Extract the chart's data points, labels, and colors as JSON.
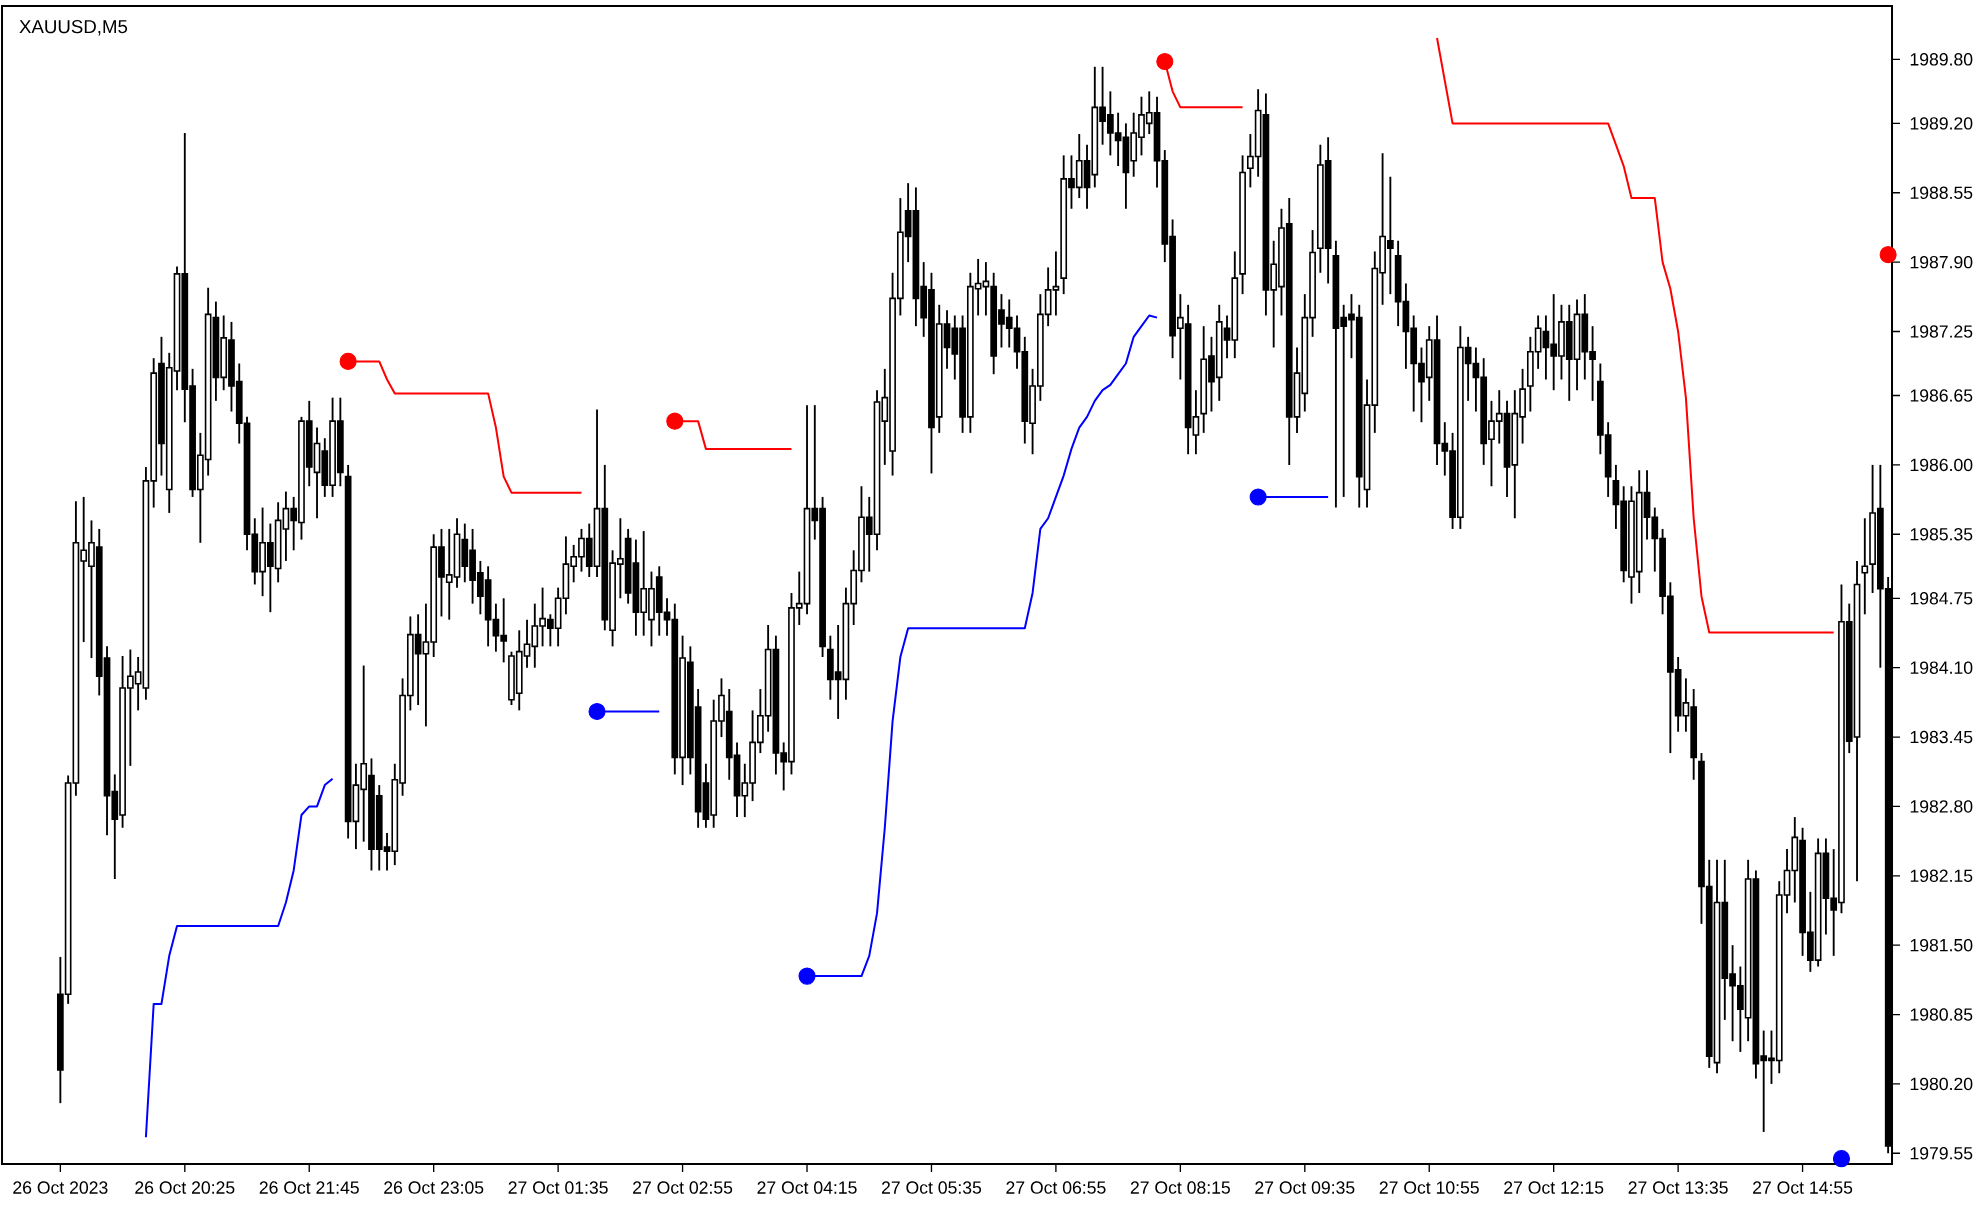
{
  "chart_data": {
    "type": "candlestick",
    "title": "XAUUSD,M5",
    "categories": [
      "26 Oct 2023",
      null,
      null,
      null,
      null,
      null,
      null,
      null,
      null,
      null,
      null,
      null,
      null,
      null,
      null,
      null,
      "26 Oct 20:25",
      null,
      null,
      null,
      null,
      null,
      null,
      null,
      null,
      null,
      null,
      null,
      null,
      null,
      null,
      null,
      "26 Oct 21:45",
      null,
      null,
      null,
      null,
      null,
      null,
      null,
      null,
      null,
      null,
      null,
      null,
      null,
      null,
      null,
      "26 Oct 23:05",
      null,
      null,
      null,
      null,
      null,
      null,
      null,
      null,
      null,
      null,
      null,
      null,
      null,
      null,
      null,
      "27 Oct 01:35",
      null,
      null,
      null,
      null,
      null,
      null,
      null,
      null,
      null,
      null,
      null,
      null,
      null,
      null,
      null,
      "27 Oct 02:55",
      null,
      null,
      null,
      null,
      null,
      null,
      null,
      null,
      null,
      null,
      null,
      null,
      null,
      null,
      null,
      "27 Oct 04:15",
      null,
      null,
      null,
      null,
      null,
      null,
      null,
      null,
      null,
      null,
      null,
      null,
      null,
      null,
      null,
      "27 Oct 05:35",
      null,
      null,
      null,
      null,
      null,
      null,
      null,
      null,
      null,
      null,
      null,
      null,
      null,
      null,
      null,
      "27 Oct 06:55",
      null,
      null,
      null,
      null,
      null,
      null,
      null,
      null,
      null,
      null,
      null,
      null,
      null,
      null,
      null,
      "27 Oct 08:15",
      null,
      null,
      null,
      null,
      null,
      null,
      null,
      null,
      null,
      null,
      null,
      null,
      null,
      null,
      null,
      "27 Oct 09:35",
      null,
      null,
      null,
      null,
      null,
      null,
      null,
      null,
      null,
      null,
      null,
      null,
      null,
      null,
      null,
      "27 Oct 10:55",
      null,
      null,
      null,
      null,
      null,
      null,
      null,
      null,
      null,
      null,
      null,
      null,
      null,
      null,
      null,
      "27 Oct 12:15",
      null,
      null,
      null,
      null,
      null,
      null,
      null,
      null,
      null,
      null,
      null,
      null,
      null,
      null,
      null,
      "27 Oct 13:35",
      null,
      null,
      null,
      null,
      null,
      null,
      null,
      null,
      null,
      null,
      null,
      null,
      null,
      null,
      null,
      "27 Oct 14:55",
      null,
      null,
      null,
      null,
      null,
      null,
      null,
      null,
      null,
      null,
      null
    ],
    "ohlc": [
      [
        1981.04,
        1981.39,
        1980.02,
        1980.33
      ],
      [
        1981.04,
        1983.09,
        1980.95,
        1983.02
      ],
      [
        1983.02,
        1985.66,
        1982.9,
        1985.27
      ],
      [
        1985.1,
        1985.7,
        1984.34,
        1985.2
      ],
      [
        1985.05,
        1985.48,
        1984.19,
        1985.27
      ],
      [
        1985.23,
        1985.4,
        1983.84,
        1984.02
      ],
      [
        1984.19,
        1984.3,
        1982.53,
        1982.9
      ],
      [
        1982.94,
        1983.1,
        1982.12,
        1982.68
      ],
      [
        1982.72,
        1984.21,
        1982.6,
        1983.91
      ],
      [
        1983.91,
        1984.27,
        1983.18,
        1984.02
      ],
      [
        1983.95,
        1984.2,
        1983.7,
        1984.06
      ],
      [
        1983.91,
        1985.98,
        1983.8,
        1985.85
      ],
      [
        1985.85,
        1987.0,
        1985.6,
        1986.86
      ],
      [
        1986.95,
        1987.2,
        1985.9,
        1986.2
      ],
      [
        1985.77,
        1987.05,
        1985.55,
        1986.91
      ],
      [
        1986.88,
        1987.86,
        1986.7,
        1987.79
      ],
      [
        1987.79,
        1989.11,
        1986.4,
        1986.71
      ],
      [
        1986.74,
        1986.9,
        1985.7,
        1985.77
      ],
      [
        1985.77,
        1986.3,
        1985.27,
        1986.09
      ],
      [
        1986.05,
        1987.66,
        1985.9,
        1987.41
      ],
      [
        1987.38,
        1987.53,
        1986.6,
        1986.82
      ],
      [
        1986.82,
        1987.4,
        1986.7,
        1987.19
      ],
      [
        1987.17,
        1987.34,
        1986.5,
        1986.74
      ],
      [
        1986.78,
        1986.95,
        1986.2,
        1986.39
      ],
      [
        1986.39,
        1986.45,
        1985.2,
        1985.35
      ],
      [
        1985.35,
        1985.5,
        1984.88,
        1985.0
      ],
      [
        1985.0,
        1985.6,
        1984.77,
        1985.27
      ],
      [
        1985.27,
        1985.45,
        1984.62,
        1985.05
      ],
      [
        1985.03,
        1985.65,
        1984.9,
        1985.48
      ],
      [
        1985.4,
        1985.75,
        1985.1,
        1985.59
      ],
      [
        1985.59,
        1985.7,
        1985.2,
        1985.48
      ],
      [
        1985.46,
        1986.45,
        1985.3,
        1986.41
      ],
      [
        1986.41,
        1986.6,
        1985.8,
        1985.98
      ],
      [
        1985.93,
        1986.35,
        1985.5,
        1986.2
      ],
      [
        1986.13,
        1986.25,
        1985.7,
        1985.81
      ],
      [
        1985.81,
        1986.63,
        1985.7,
        1986.41
      ],
      [
        1986.41,
        1986.63,
        1985.8,
        1985.93
      ],
      [
        1985.89,
        1986.0,
        1982.5,
        1982.66
      ],
      [
        1982.66,
        1983.2,
        1982.4,
        1983.0
      ],
      [
        1982.96,
        1984.12,
        1982.47,
        1983.2
      ],
      [
        1983.09,
        1983.25,
        1982.2,
        1982.4
      ],
      [
        1982.9,
        1983.0,
        1982.2,
        1982.4
      ],
      [
        1982.42,
        1982.55,
        1982.2,
        1982.38
      ],
      [
        1982.38,
        1983.2,
        1982.25,
        1983.05
      ],
      [
        1983.02,
        1984.0,
        1982.9,
        1983.84
      ],
      [
        1983.84,
        1984.58,
        1983.7,
        1984.41
      ],
      [
        1984.41,
        1984.6,
        1983.75,
        1984.23
      ],
      [
        1984.23,
        1984.7,
        1983.55,
        1984.34
      ],
      [
        1984.34,
        1985.35,
        1984.2,
        1985.23
      ],
      [
        1985.23,
        1985.4,
        1984.58,
        1984.95
      ],
      [
        1984.9,
        1985.4,
        1984.55,
        1984.97
      ],
      [
        1984.95,
        1985.5,
        1984.85,
        1985.35
      ],
      [
        1985.3,
        1985.45,
        1984.9,
        1985.05
      ],
      [
        1985.2,
        1985.4,
        1984.7,
        1984.92
      ],
      [
        1984.99,
        1985.1,
        1984.6,
        1984.77
      ],
      [
        1984.92,
        1985.05,
        1984.3,
        1984.55
      ],
      [
        1984.55,
        1984.7,
        1984.25,
        1984.4
      ],
      [
        1984.4,
        1984.75,
        1984.15,
        1984.35
      ],
      [
        1983.8,
        1984.25,
        1983.75,
        1984.21
      ],
      [
        1983.86,
        1984.45,
        1983.7,
        1984.25
      ],
      [
        1984.21,
        1984.55,
        1984.1,
        1984.32
      ],
      [
        1984.3,
        1984.7,
        1984.1,
        1984.49
      ],
      [
        1984.49,
        1984.85,
        1984.3,
        1984.56
      ],
      [
        1984.55,
        1984.6,
        1984.3,
        1984.47
      ],
      [
        1984.47,
        1984.85,
        1984.3,
        1984.75
      ],
      [
        1984.75,
        1985.33,
        1984.6,
        1985.07
      ],
      [
        1985.05,
        1985.25,
        1984.9,
        1985.14
      ],
      [
        1985.14,
        1985.4,
        1985.0,
        1985.31
      ],
      [
        1985.31,
        1985.45,
        1984.95,
        1985.05
      ],
      [
        1985.05,
        1986.52,
        1984.95,
        1985.59
      ],
      [
        1985.59,
        1986.0,
        1984.45,
        1984.55
      ],
      [
        1984.45,
        1985.2,
        1984.3,
        1985.08
      ],
      [
        1985.07,
        1985.5,
        1984.75,
        1985.12
      ],
      [
        1985.31,
        1985.4,
        1984.7,
        1984.8
      ],
      [
        1985.08,
        1985.3,
        1984.4,
        1984.62
      ],
      [
        1984.62,
        1985.38,
        1984.4,
        1984.84
      ],
      [
        1984.55,
        1985.0,
        1984.3,
        1984.84
      ],
      [
        1984.95,
        1985.05,
        1984.4,
        1984.62
      ],
      [
        1984.62,
        1984.75,
        1984.4,
        1984.55
      ],
      [
        1984.55,
        1984.7,
        1983.1,
        1983.26
      ],
      [
        1983.26,
        1984.4,
        1983.0,
        1984.19
      ],
      [
        1984.15,
        1984.3,
        1983.1,
        1983.26
      ],
      [
        1983.73,
        1983.9,
        1982.6,
        1982.75
      ],
      [
        1983.02,
        1983.2,
        1982.6,
        1982.68
      ],
      [
        1982.72,
        1983.8,
        1982.6,
        1983.6
      ],
      [
        1983.6,
        1984.0,
        1983.45,
        1983.84
      ],
      [
        1983.69,
        1983.9,
        1983.05,
        1983.26
      ],
      [
        1983.28,
        1983.4,
        1982.7,
        1982.9
      ],
      [
        1982.9,
        1983.2,
        1982.7,
        1983.02
      ],
      [
        1983.02,
        1983.7,
        1982.85,
        1983.4
      ],
      [
        1983.4,
        1983.9,
        1983.3,
        1983.65
      ],
      [
        1983.65,
        1984.5,
        1983.5,
        1984.27
      ],
      [
        1984.27,
        1984.4,
        1983.1,
        1983.3
      ],
      [
        1983.3,
        1983.4,
        1982.95,
        1983.22
      ],
      [
        1983.22,
        1984.8,
        1983.1,
        1984.66
      ],
      [
        1984.66,
        1985.0,
        1984.5,
        1984.7
      ],
      [
        1984.7,
        1986.56,
        1984.6,
        1985.59
      ],
      [
        1985.59,
        1986.56,
        1985.3,
        1985.48
      ],
      [
        1985.59,
        1985.7,
        1984.2,
        1984.3
      ],
      [
        1984.27,
        1984.4,
        1983.8,
        1983.99
      ],
      [
        1984.06,
        1984.5,
        1983.62,
        1983.99
      ],
      [
        1983.99,
        1984.85,
        1983.8,
        1984.7
      ],
      [
        1984.7,
        1985.2,
        1984.5,
        1985.01
      ],
      [
        1985.01,
        1985.8,
        1984.9,
        1985.51
      ],
      [
        1985.51,
        1985.7,
        1985.0,
        1985.35
      ],
      [
        1985.35,
        1986.7,
        1985.2,
        1986.59
      ],
      [
        1986.41,
        1986.9,
        1986.0,
        1986.63
      ],
      [
        1986.13,
        1987.8,
        1985.9,
        1987.56
      ],
      [
        1987.56,
        1988.5,
        1987.4,
        1988.18
      ],
      [
        1988.38,
        1988.64,
        1987.9,
        1988.14
      ],
      [
        1988.38,
        1988.6,
        1987.3,
        1987.56
      ],
      [
        1987.67,
        1987.9,
        1987.2,
        1987.38
      ],
      [
        1987.64,
        1987.8,
        1985.92,
        1986.35
      ],
      [
        1986.45,
        1987.5,
        1986.3,
        1987.32
      ],
      [
        1987.32,
        1987.45,
        1986.9,
        1987.1
      ],
      [
        1987.28,
        1987.4,
        1986.8,
        1987.04
      ],
      [
        1987.28,
        1987.4,
        1986.3,
        1986.45
      ],
      [
        1986.45,
        1987.8,
        1986.3,
        1987.67
      ],
      [
        1987.65,
        1987.93,
        1987.4,
        1987.7
      ],
      [
        1987.67,
        1987.9,
        1987.4,
        1987.72
      ],
      [
        1987.67,
        1987.8,
        1986.85,
        1987.02
      ],
      [
        1987.45,
        1987.6,
        1987.1,
        1987.32
      ],
      [
        1987.38,
        1987.55,
        1987.1,
        1987.28
      ],
      [
        1987.28,
        1987.4,
        1986.9,
        1987.06
      ],
      [
        1987.06,
        1987.2,
        1986.2,
        1986.41
      ],
      [
        1986.39,
        1986.9,
        1986.1,
        1986.74
      ],
      [
        1986.74,
        1987.6,
        1986.6,
        1987.41
      ],
      [
        1987.41,
        1987.85,
        1987.3,
        1987.64
      ],
      [
        1987.64,
        1988.0,
        1987.4,
        1987.67
      ],
      [
        1987.75,
        1988.9,
        1987.6,
        1988.68
      ],
      [
        1988.68,
        1988.9,
        1988.4,
        1988.6
      ],
      [
        1988.6,
        1989.1,
        1988.5,
        1988.85
      ],
      [
        1988.85,
        1989.0,
        1988.4,
        1988.6
      ],
      [
        1988.72,
        1989.73,
        1988.6,
        1989.35
      ],
      [
        1989.35,
        1989.73,
        1989.0,
        1989.22
      ],
      [
        1989.28,
        1989.5,
        1988.9,
        1989.11
      ],
      [
        1989.11,
        1989.3,
        1988.8,
        1989.04
      ],
      [
        1989.07,
        1989.2,
        1988.4,
        1988.74
      ],
      [
        1988.85,
        1989.3,
        1988.7,
        1989.11
      ],
      [
        1989.07,
        1989.45,
        1988.9,
        1989.28
      ],
      [
        1989.2,
        1989.5,
        1989.1,
        1989.3
      ],
      [
        1989.3,
        1989.45,
        1988.6,
        1988.85
      ],
      [
        1988.85,
        1988.95,
        1987.9,
        1988.07
      ],
      [
        1988.14,
        1988.3,
        1987.0,
        1987.21
      ],
      [
        1987.28,
        1987.6,
        1986.8,
        1987.38
      ],
      [
        1987.32,
        1987.5,
        1986.1,
        1986.35
      ],
      [
        1986.28,
        1986.7,
        1986.1,
        1986.45
      ],
      [
        1986.48,
        1987.3,
        1986.3,
        1986.99
      ],
      [
        1987.02,
        1987.2,
        1986.5,
        1986.78
      ],
      [
        1986.82,
        1987.5,
        1986.6,
        1987.34
      ],
      [
        1987.28,
        1987.4,
        1987.0,
        1987.17
      ],
      [
        1987.17,
        1988.0,
        1987.0,
        1987.75
      ],
      [
        1987.79,
        1988.9,
        1987.6,
        1988.74
      ],
      [
        1988.78,
        1989.1,
        1988.6,
        1988.89
      ],
      [
        1988.89,
        1989.52,
        1988.7,
        1989.32
      ],
      [
        1989.28,
        1989.48,
        1987.4,
        1987.64
      ],
      [
        1987.64,
        1988.1,
        1987.1,
        1987.88
      ],
      [
        1987.67,
        1988.4,
        1987.4,
        1988.22
      ],
      [
        1988.26,
        1988.5,
        1986.0,
        1986.45
      ],
      [
        1986.45,
        1987.1,
        1986.3,
        1986.86
      ],
      [
        1986.67,
        1987.6,
        1986.5,
        1987.38
      ],
      [
        1987.38,
        1988.2,
        1987.2,
        1987.99
      ],
      [
        1988.03,
        1989.0,
        1987.8,
        1988.81
      ],
      [
        1988.85,
        1989.07,
        1987.7,
        1988.03
      ],
      [
        1987.96,
        1988.1,
        1985.6,
        1987.28
      ],
      [
        1987.38,
        1987.5,
        1985.7,
        1987.3
      ],
      [
        1987.41,
        1987.6,
        1987.0,
        1987.36
      ],
      [
        1987.38,
        1987.5,
        1985.6,
        1985.89
      ],
      [
        1985.77,
        1986.8,
        1985.6,
        1986.56
      ],
      [
        1986.56,
        1988.0,
        1986.3,
        1987.84
      ],
      [
        1987.8,
        1988.92,
        1987.5,
        1988.14
      ],
      [
        1988.1,
        1988.7,
        1987.6,
        1988.03
      ],
      [
        1987.96,
        1988.1,
        1987.3,
        1987.53
      ],
      [
        1987.53,
        1987.7,
        1986.9,
        1987.25
      ],
      [
        1987.28,
        1987.4,
        1986.5,
        1986.95
      ],
      [
        1986.95,
        1987.1,
        1986.4,
        1986.78
      ],
      [
        1986.82,
        1987.3,
        1986.6,
        1987.17
      ],
      [
        1987.17,
        1987.4,
        1986.0,
        1986.2
      ],
      [
        1986.2,
        1986.4,
        1985.9,
        1986.13
      ],
      [
        1986.13,
        1986.3,
        1985.4,
        1985.51
      ],
      [
        1985.51,
        1987.3,
        1985.4,
        1987.1
      ],
      [
        1987.1,
        1987.2,
        1986.6,
        1986.95
      ],
      [
        1986.95,
        1987.1,
        1986.5,
        1986.82
      ],
      [
        1986.82,
        1987.0,
        1986.0,
        1986.2
      ],
      [
        1986.24,
        1986.6,
        1985.8,
        1986.41
      ],
      [
        1986.41,
        1986.7,
        1986.2,
        1986.48
      ],
      [
        1986.48,
        1986.6,
        1985.7,
        1985.98
      ],
      [
        1986.0,
        1986.7,
        1985.5,
        1986.48
      ],
      [
        1986.45,
        1986.9,
        1986.2,
        1986.71
      ],
      [
        1986.74,
        1987.2,
        1986.5,
        1987.06
      ],
      [
        1987.06,
        1987.4,
        1986.9,
        1987.28
      ],
      [
        1987.25,
        1987.4,
        1986.8,
        1987.1
      ],
      [
        1987.13,
        1987.6,
        1986.7,
        1987.02
      ],
      [
        1987.02,
        1987.5,
        1986.8,
        1987.34
      ],
      [
        1987.34,
        1987.5,
        1986.6,
        1986.99
      ],
      [
        1986.99,
        1987.55,
        1986.7,
        1987.41
      ],
      [
        1987.41,
        1987.6,
        1986.8,
        1987.06
      ],
      [
        1987.06,
        1987.3,
        1986.6,
        1986.99
      ],
      [
        1986.78,
        1986.95,
        1986.1,
        1986.28
      ],
      [
        1986.28,
        1986.4,
        1985.7,
        1985.89
      ],
      [
        1985.85,
        1986.0,
        1985.4,
        1985.63
      ],
      [
        1985.66,
        1985.8,
        1984.9,
        1985.01
      ],
      [
        1984.95,
        1985.8,
        1984.7,
        1985.66
      ],
      [
        1985.0,
        1985.95,
        1984.8,
        1985.74
      ],
      [
        1985.74,
        1985.95,
        1985.3,
        1985.51
      ],
      [
        1985.51,
        1985.6,
        1985.0,
        1985.31
      ],
      [
        1985.31,
        1985.4,
        1984.6,
        1984.77
      ],
      [
        1984.77,
        1984.9,
        1983.3,
        1984.06
      ],
      [
        1984.08,
        1984.2,
        1983.5,
        1983.65
      ],
      [
        1983.65,
        1984.0,
        1983.5,
        1983.77
      ],
      [
        1983.73,
        1983.9,
        1983.05,
        1983.26
      ],
      [
        1983.22,
        1983.3,
        1981.7,
        1982.05
      ],
      [
        1982.05,
        1982.3,
        1980.35,
        1980.46
      ],
      [
        1980.4,
        1982.3,
        1980.3,
        1981.9
      ],
      [
        1981.9,
        1982.3,
        1980.8,
        1981.19
      ],
      [
        1981.23,
        1981.5,
        1980.6,
        1981.12
      ],
      [
        1981.12,
        1981.3,
        1980.5,
        1980.9
      ],
      [
        1980.82,
        1982.3,
        1980.6,
        1982.12
      ],
      [
        1982.12,
        1982.2,
        1980.25,
        1980.39
      ],
      [
        1980.46,
        1980.7,
        1979.75,
        1980.42
      ],
      [
        1980.44,
        1980.7,
        1980.2,
        1980.42
      ],
      [
        1980.42,
        1982.1,
        1980.3,
        1981.97
      ],
      [
        1981.97,
        1982.4,
        1981.8,
        1982.2
      ],
      [
        1982.2,
        1982.7,
        1981.9,
        1982.51
      ],
      [
        1982.48,
        1982.6,
        1981.4,
        1981.62
      ],
      [
        1981.62,
        1982.0,
        1981.25,
        1981.36
      ],
      [
        1981.36,
        1982.5,
        1981.3,
        1982.36
      ],
      [
        1982.36,
        1982.5,
        1981.6,
        1981.94
      ],
      [
        1981.94,
        1982.4,
        1981.4,
        1981.83
      ],
      [
        1981.9,
        1984.88,
        1981.8,
        1984.53
      ],
      [
        1984.53,
        1984.7,
        1983.3,
        1983.41
      ],
      [
        1983.45,
        1985.1,
        1982.1,
        1984.88
      ],
      [
        1984.99,
        1985.5,
        1984.6,
        1985.05
      ],
      [
        1985.07,
        1986.0,
        1984.8,
        1985.55
      ],
      [
        1985.59,
        1986.0,
        1984.1,
        1984.84
      ],
      [
        1984.84,
        1984.95,
        1979.55,
        1979.62
      ]
    ],
    "series": [
      {
        "type": "line",
        "color": "#ff0000",
        "values": [
          null,
          null,
          null,
          null,
          null,
          null,
          null,
          null,
          null,
          null,
          null,
          null,
          null,
          null,
          null,
          null,
          null,
          null,
          null,
          null,
          null,
          null,
          null,
          null,
          null,
          null,
          null,
          null,
          null,
          null,
          null,
          null,
          null,
          null,
          null,
          null,
          null,
          1986.97,
          1986.97,
          1986.97,
          1986.97,
          1986.97,
          1986.8,
          1986.67,
          1986.67,
          1986.67,
          1986.67,
          1986.67,
          1986.67,
          1986.67,
          1986.67,
          1986.67,
          1986.67,
          1986.67,
          1986.67,
          1986.67,
          1986.35,
          1985.89,
          1985.74,
          1985.74,
          1985.74,
          1985.74,
          1985.74,
          1985.74,
          1985.74,
          1985.74,
          1985.74,
          1985.74,
          null,
          null,
          null,
          null,
          null,
          null,
          null,
          null,
          null,
          null,
          null,
          1986.41,
          1986.41,
          1986.41,
          1986.41,
          1986.15,
          1986.15,
          1986.15,
          1986.15,
          1986.15,
          1986.15,
          1986.15,
          1986.15,
          1986.15,
          1986.15,
          1986.15,
          1986.15,
          null,
          null,
          null,
          null,
          null,
          null,
          null,
          null,
          null,
          null,
          null,
          null,
          null,
          null,
          null,
          null,
          null,
          null,
          null,
          null,
          null,
          null,
          null,
          null,
          null,
          null,
          null,
          null,
          null,
          null,
          null,
          null,
          null,
          null,
          null,
          null,
          null,
          null,
          null,
          null,
          null,
          null,
          null,
          null,
          null,
          null,
          null,
          1989.78,
          1989.5,
          1989.35,
          1989.35,
          1989.35,
          1989.35,
          1989.35,
          1989.35,
          1989.35,
          1989.35,
          1989.35,
          null,
          null,
          null,
          null,
          null,
          null,
          null,
          null,
          null,
          null,
          null,
          null,
          null,
          null,
          null,
          null,
          null,
          null,
          null,
          null,
          null,
          null,
          null,
          null,
          1990.0,
          1989.6,
          1989.2,
          1989.2,
          1989.2,
          1989.2,
          1989.2,
          1989.2,
          1989.2,
          1989.2,
          1989.2,
          1989.2,
          1989.2,
          1989.2,
          1989.2,
          1989.2,
          1989.2,
          1989.2,
          1989.2,
          1989.2,
          1989.2,
          1989.2,
          1989.2,
          1989.0,
          1988.8,
          1988.5,
          1988.5,
          1988.5,
          1988.5,
          1987.9,
          1987.65,
          1987.25,
          1986.63,
          1985.5,
          1984.77,
          1984.43,
          1984.43,
          1984.43,
          1984.43,
          1984.43,
          1984.43,
          1984.43,
          1984.43,
          1984.43,
          1984.43,
          1984.43,
          1984.43,
          1984.43,
          1984.43,
          1984.43,
          1984.43,
          1984.43,
          null,
          null,
          null,
          null,
          null,
          null,
          null
        ]
      },
      {
        "type": "line",
        "color": "#0000ff",
        "values": [
          null,
          null,
          null,
          null,
          null,
          null,
          null,
          null,
          null,
          null,
          null,
          1979.7,
          1980.95,
          1980.95,
          1981.4,
          1981.68,
          1981.68,
          1981.68,
          1981.68,
          1981.68,
          1981.68,
          1981.68,
          1981.68,
          1981.68,
          1981.68,
          1981.68,
          1981.68,
          1981.68,
          1981.68,
          1981.9,
          1982.2,
          1982.72,
          1982.8,
          1982.8,
          1983.0,
          1983.06,
          null,
          null,
          null,
          null,
          null,
          null,
          null,
          null,
          null,
          null,
          null,
          null,
          null,
          null,
          null,
          null,
          null,
          null,
          null,
          null,
          null,
          null,
          null,
          null,
          null,
          null,
          null,
          null,
          null,
          null,
          null,
          null,
          null,
          1983.69,
          1983.69,
          1983.69,
          1983.69,
          1983.69,
          1983.69,
          1983.69,
          1983.69,
          1983.69,
          null,
          null,
          null,
          null,
          null,
          null,
          null,
          null,
          null,
          null,
          null,
          null,
          null,
          null,
          null,
          null,
          null,
          null,
          1981.21,
          1981.21,
          1981.21,
          1981.21,
          1981.21,
          1981.21,
          1981.21,
          1981.21,
          1981.4,
          1981.8,
          1982.6,
          1983.6,
          1984.2,
          1984.47,
          1984.47,
          1984.47,
          1984.47,
          1984.47,
          1984.47,
          1984.47,
          1984.47,
          1984.47,
          1984.47,
          1984.47,
          1984.47,
          1984.47,
          1984.47,
          1984.47,
          1984.47,
          1984.8,
          1985.4,
          1985.5,
          1985.7,
          1985.9,
          1986.15,
          1986.35,
          1986.45,
          1986.6,
          1986.7,
          1986.75,
          1986.85,
          1986.95,
          1987.2,
          1987.3,
          1987.4,
          1987.38,
          null,
          null,
          null,
          null,
          null,
          null,
          null,
          null,
          null,
          null,
          null,
          null,
          1985.7,
          1985.7,
          1985.7,
          1985.7,
          1985.7,
          1985.7,
          1985.7,
          1985.7,
          1985.7,
          1985.7,
          null,
          null,
          null,
          null,
          null,
          null,
          null,
          null,
          null,
          null,
          null,
          null,
          null,
          null,
          null,
          null,
          null,
          null,
          null,
          null,
          null,
          null,
          null,
          null,
          null,
          null,
          null,
          null,
          null,
          null,
          null,
          null,
          null,
          null,
          null,
          null,
          null,
          null,
          null,
          null,
          null,
          null,
          null,
          null,
          null,
          null,
          null,
          null,
          null,
          null,
          null,
          null,
          null,
          null,
          null,
          null,
          null,
          null,
          null,
          null,
          null,
          null,
          null,
          null,
          null,
          null,
          null,
          null,
          null,
          null,
          null,
          null
        ]
      },
      {
        "type": "scatter",
        "marker": "circle",
        "color": "#ff0000",
        "values": [
          null,
          null,
          null,
          null,
          null,
          null,
          null,
          null,
          null,
          null,
          null,
          null,
          null,
          null,
          null,
          null,
          null,
          null,
          null,
          null,
          null,
          null,
          null,
          null,
          null,
          null,
          null,
          null,
          null,
          null,
          null,
          null,
          null,
          null,
          null,
          null,
          null,
          1986.97,
          null,
          null,
          null,
          null,
          null,
          null,
          null,
          null,
          null,
          null,
          null,
          null,
          null,
          null,
          null,
          null,
          null,
          null,
          null,
          null,
          null,
          null,
          null,
          null,
          null,
          null,
          null,
          null,
          null,
          null,
          null,
          null,
          null,
          null,
          null,
          null,
          null,
          null,
          null,
          null,
          null,
          1986.41,
          null,
          null,
          null,
          null,
          null,
          null,
          null,
          null,
          null,
          null,
          null,
          null,
          null,
          null,
          null,
          null,
          null,
          null,
          null,
          null,
          null,
          null,
          null,
          null,
          null,
          null,
          null,
          null,
          null,
          null,
          null,
          null,
          null,
          null,
          null,
          null,
          null,
          null,
          null,
          null,
          null,
          null,
          null,
          null,
          null,
          null,
          null,
          null,
          null,
          null,
          null,
          null,
          null,
          null,
          null,
          null,
          null,
          null,
          null,
          null,
          null,
          null,
          1989.78,
          null,
          null,
          null,
          null,
          null,
          null,
          null,
          null,
          null,
          null,
          null,
          null,
          null,
          null,
          null,
          null,
          null,
          null,
          null,
          null,
          null,
          null,
          null,
          null,
          null,
          null,
          null,
          null,
          null,
          null,
          null,
          null,
          null,
          null,
          null,
          null,
          null,
          null,
          null,
          null,
          null,
          null,
          null,
          null,
          null,
          null,
          null,
          null,
          null,
          null,
          null,
          null,
          null,
          null,
          null,
          null,
          null,
          null,
          null,
          null,
          null,
          null,
          null,
          null,
          null,
          null,
          null,
          null,
          null,
          null,
          null,
          null,
          null,
          null,
          null,
          null,
          null,
          null,
          null,
          null,
          null,
          null,
          null,
          null,
          null,
          null,
          null,
          null,
          null,
          null,
          null,
          null,
          1987.97
        ]
      },
      {
        "type": "scatter",
        "marker": "circle",
        "color": "#0000ff",
        "values": [
          null,
          null,
          null,
          null,
          null,
          null,
          null,
          null,
          null,
          null,
          null,
          null,
          null,
          null,
          null,
          null,
          null,
          null,
          null,
          null,
          null,
          null,
          null,
          null,
          null,
          null,
          null,
          null,
          null,
          null,
          null,
          null,
          null,
          null,
          null,
          null,
          null,
          null,
          null,
          null,
          null,
          null,
          null,
          null,
          null,
          null,
          null,
          null,
          null,
          null,
          null,
          null,
          null,
          null,
          null,
          null,
          null,
          null,
          null,
          null,
          null,
          null,
          null,
          null,
          null,
          null,
          null,
          null,
          null,
          1983.69,
          null,
          null,
          null,
          null,
          null,
          null,
          null,
          null,
          null,
          null,
          null,
          null,
          null,
          null,
          null,
          null,
          null,
          null,
          null,
          null,
          null,
          null,
          null,
          null,
          null,
          null,
          1981.21,
          null,
          null,
          null,
          null,
          null,
          null,
          null,
          null,
          null,
          null,
          null,
          null,
          null,
          null,
          null,
          null,
          null,
          null,
          null,
          null,
          null,
          null,
          null,
          null,
          null,
          null,
          null,
          null,
          null,
          null,
          null,
          null,
          null,
          null,
          null,
          null,
          null,
          null,
          null,
          null,
          null,
          null,
          null,
          null,
          null,
          null,
          null,
          null,
          null,
          null,
          null,
          null,
          null,
          null,
          null,
          null,
          null,
          1985.7,
          null,
          null,
          null,
          null,
          null,
          null,
          null,
          null,
          null,
          null,
          null,
          null,
          null,
          null,
          null,
          null,
          null,
          null,
          null,
          null,
          null,
          null,
          null,
          null,
          null,
          null,
          null,
          null,
          null,
          null,
          null,
          null,
          null,
          null,
          null,
          null,
          null,
          null,
          null,
          null,
          null,
          null,
          null,
          null,
          null,
          null,
          null,
          null,
          null,
          null,
          null,
          null,
          null,
          null,
          null,
          null,
          null,
          null,
          null,
          null,
          null,
          null,
          null,
          null,
          null,
          null,
          null,
          null,
          null,
          null,
          null,
          null,
          null,
          null,
          1979.5,
          null,
          null,
          null,
          null,
          null,
          null
        ]
      }
    ],
    "ylim": [
      1979.45,
      1990.3
    ],
    "yticks": [
      {
        "value": 1979.55,
        "label": "1979.55"
      },
      {
        "value": 1980.2,
        "label": "1980.20"
      },
      {
        "value": 1980.85,
        "label": "1980.85"
      },
      {
        "value": 1981.5,
        "label": "1981.50"
      },
      {
        "value": 1982.15,
        "label": "1982.15"
      },
      {
        "value": 1982.8,
        "label": "1982.80"
      },
      {
        "value": 1983.45,
        "label": "1983.45"
      },
      {
        "value": 1984.1,
        "label": "1984.10"
      },
      {
        "value": 1984.75,
        "label": "1984.75"
      },
      {
        "value": 1985.35,
        "label": "1985.35"
      },
      {
        "value": 1986.0,
        "label": "1986.00"
      },
      {
        "value": 1986.65,
        "label": "1986.65"
      },
      {
        "value": 1987.25,
        "label": "1987.25"
      },
      {
        "value": 1987.9,
        "label": "1987.90"
      },
      {
        "value": 1988.55,
        "label": "1988.55"
      },
      {
        "value": 1989.2,
        "label": "1989.20"
      },
      {
        "value": 1989.8,
        "label": "1989.80"
      }
    ]
  }
}
